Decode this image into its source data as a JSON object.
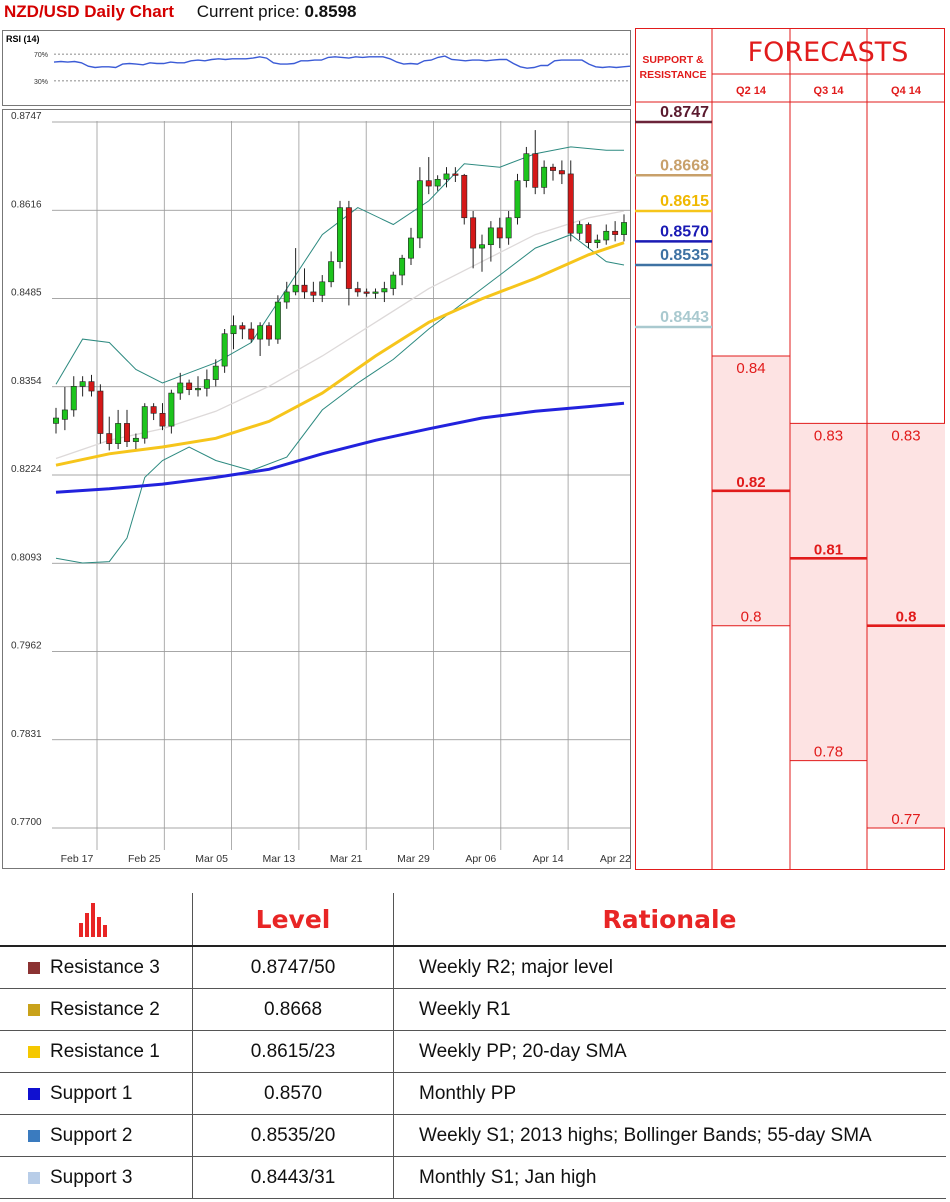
{
  "header": {
    "title": "NZD/USD Daily Chart",
    "price_label": "Current price:",
    "price_value": "0.8598"
  },
  "colors": {
    "up": "#1dc41d",
    "down": "#d41818",
    "sma20": "#ddd9d9",
    "sma55": "#f6c51b",
    "sma200": "#2222dd",
    "bollinger": "#2d8a80",
    "rsi": "#3b5bd6",
    "forecast_red": "#e11b1b",
    "forecast_fill": "#fde3e3"
  },
  "chart_data": [
    {
      "type": "line",
      "title": "RSI (14)",
      "yticks": [
        "70%",
        "30%"
      ],
      "ylim": [
        0,
        100
      ],
      "series": [
        {
          "values": [
            58,
            59,
            58,
            59,
            57,
            52,
            50,
            51,
            51,
            50,
            55,
            56,
            55,
            54,
            57,
            56,
            56,
            58,
            57,
            57,
            60,
            61,
            60,
            62,
            63,
            62,
            63,
            63,
            63,
            64,
            66,
            64,
            57,
            55,
            55,
            56,
            60,
            60,
            61,
            61,
            65,
            66,
            65,
            64,
            66,
            65,
            66,
            66,
            66,
            63,
            58,
            55,
            56,
            55,
            60,
            61,
            65,
            67,
            62,
            61,
            60,
            61,
            61,
            60,
            61,
            62,
            62,
            56,
            51,
            49,
            50,
            53,
            53,
            60,
            61,
            61,
            61,
            61,
            55,
            51,
            50,
            51,
            50,
            51,
            52
          ]
        }
      ]
    },
    {
      "type": "candlestick",
      "title": "NZD/USD Daily Chart",
      "yticks": [
        "0.8747",
        "0.8616",
        "0.8485",
        "0.8354",
        "0.8224",
        "0.8093",
        "0.7962",
        "0.7831",
        "0.7700"
      ],
      "ylim": [
        0.77,
        0.8747
      ],
      "xticks": [
        "Feb 17",
        "Feb 25",
        "Mar 05",
        "Mar 13",
        "Mar 21",
        "Mar 29",
        "Apr 06",
        "Apr 14",
        "Apr 22"
      ],
      "candles": [
        [
          0.83,
          0.8323,
          0.8308,
          0.8285
        ],
        [
          0.8306,
          0.8354,
          0.832,
          0.829
        ],
        [
          0.832,
          0.837,
          0.8355,
          0.831
        ],
        [
          0.8355,
          0.837,
          0.8362,
          0.834
        ],
        [
          0.8362,
          0.8372,
          0.8348,
          0.834
        ],
        [
          0.8348,
          0.8358,
          0.8285,
          0.827
        ],
        [
          0.8285,
          0.831,
          0.827,
          0.826
        ],
        [
          0.827,
          0.832,
          0.83,
          0.8262
        ],
        [
          0.83,
          0.832,
          0.8273,
          0.8265
        ],
        [
          0.8273,
          0.8285,
          0.8278,
          0.8262
        ],
        [
          0.8278,
          0.833,
          0.8325,
          0.827
        ],
        [
          0.8325,
          0.833,
          0.8315,
          0.8305
        ],
        [
          0.8315,
          0.833,
          0.8296,
          0.829
        ],
        [
          0.8296,
          0.835,
          0.8345,
          0.8285
        ],
        [
          0.8345,
          0.8375,
          0.836,
          0.8335
        ],
        [
          0.836,
          0.8365,
          0.835,
          0.8342
        ],
        [
          0.835,
          0.837,
          0.8352,
          0.834
        ],
        [
          0.8352,
          0.838,
          0.8365,
          0.834
        ],
        [
          0.8365,
          0.8395,
          0.8385,
          0.8355
        ],
        [
          0.8385,
          0.844,
          0.8433,
          0.8375
        ],
        [
          0.8433,
          0.846,
          0.8445,
          0.841
        ],
        [
          0.8445,
          0.845,
          0.844,
          0.8425
        ],
        [
          0.844,
          0.845,
          0.8425,
          0.842
        ],
        [
          0.8425,
          0.845,
          0.8445,
          0.84
        ],
        [
          0.8445,
          0.845,
          0.8425,
          0.8415
        ],
        [
          0.8425,
          0.849,
          0.848,
          0.8418
        ],
        [
          0.848,
          0.851,
          0.8495,
          0.847
        ],
        [
          0.8495,
          0.856,
          0.8505,
          0.849
        ],
        [
          0.8505,
          0.853,
          0.8495,
          0.8485
        ],
        [
          0.8495,
          0.851,
          0.849,
          0.848
        ],
        [
          0.849,
          0.852,
          0.851,
          0.848
        ],
        [
          0.851,
          0.8555,
          0.854,
          0.8502
        ],
        [
          0.854,
          0.863,
          0.862,
          0.853
        ],
        [
          0.862,
          0.863,
          0.85,
          0.8475
        ],
        [
          0.85,
          0.851,
          0.8495,
          0.8488
        ],
        [
          0.8495,
          0.85,
          0.8493,
          0.8488
        ],
        [
          0.8493,
          0.85,
          0.8495,
          0.8485
        ],
        [
          0.8495,
          0.851,
          0.85,
          0.848
        ],
        [
          0.85,
          0.8525,
          0.852,
          0.849
        ],
        [
          0.852,
          0.855,
          0.8545,
          0.8505
        ],
        [
          0.8545,
          0.859,
          0.8575,
          0.8535
        ],
        [
          0.8575,
          0.868,
          0.866,
          0.856
        ],
        [
          0.866,
          0.8695,
          0.8652,
          0.864
        ],
        [
          0.8652,
          0.8668,
          0.8662,
          0.8645
        ],
        [
          0.8662,
          0.868,
          0.867,
          0.865
        ],
        [
          0.867,
          0.868,
          0.8668,
          0.8658
        ],
        [
          0.8668,
          0.867,
          0.8605,
          0.8595
        ],
        [
          0.8605,
          0.8615,
          0.856,
          0.853
        ],
        [
          0.856,
          0.858,
          0.8565,
          0.8525
        ],
        [
          0.8565,
          0.86,
          0.859,
          0.854
        ],
        [
          0.859,
          0.8605,
          0.8575,
          0.856
        ],
        [
          0.8575,
          0.8615,
          0.8605,
          0.8565
        ],
        [
          0.8605,
          0.867,
          0.866,
          0.8595
        ],
        [
          0.866,
          0.871,
          0.87,
          0.865
        ],
        [
          0.87,
          0.8735,
          0.865,
          0.864
        ],
        [
          0.865,
          0.869,
          0.868,
          0.864
        ],
        [
          0.868,
          0.8685,
          0.8675,
          0.866
        ],
        [
          0.8675,
          0.869,
          0.867,
          0.8655
        ],
        [
          0.867,
          0.869,
          0.8582,
          0.857
        ],
        [
          0.8582,
          0.86,
          0.8595,
          0.8572
        ],
        [
          0.8595,
          0.8598,
          0.8568,
          0.856
        ],
        [
          0.8568,
          0.858,
          0.8572,
          0.856
        ],
        [
          0.8572,
          0.8595,
          0.8585,
          0.8565
        ],
        [
          0.8585,
          0.86,
          0.858,
          0.857
        ],
        [
          0.858,
          0.861,
          0.8598,
          0.857
        ]
      ],
      "series": [
        {
          "name": "sma20",
          "x": [
            0,
            6,
            12,
            18,
            24,
            30,
            36,
            42,
            48,
            54,
            60,
            64
          ],
          "values": [
            0.8248,
            0.8275,
            0.8292,
            0.8318,
            0.8355,
            0.84,
            0.845,
            0.85,
            0.854,
            0.858,
            0.8605,
            0.8615
          ]
        },
        {
          "name": "sma55",
          "x": [
            0,
            6,
            12,
            18,
            24,
            30,
            36,
            42,
            48,
            54,
            60,
            64
          ],
          "values": [
            0.8238,
            0.8255,
            0.8265,
            0.8278,
            0.8303,
            0.8345,
            0.84,
            0.845,
            0.8485,
            0.8515,
            0.855,
            0.8568
          ]
        },
        {
          "name": "sma200",
          "x": [
            0,
            6,
            12,
            18,
            24,
            30,
            36,
            42,
            48,
            54,
            60,
            64
          ],
          "values": [
            0.8198,
            0.8203,
            0.821,
            0.822,
            0.8232,
            0.8255,
            0.8275,
            0.8292,
            0.8308,
            0.8318,
            0.8325,
            0.833
          ]
        },
        {
          "name": "bb_upper",
          "x": [
            0,
            3,
            6,
            9,
            12,
            15,
            18,
            22,
            26,
            30,
            34,
            38,
            42,
            46,
            50,
            54,
            58,
            62,
            64
          ],
          "values": [
            0.8358,
            0.8425,
            0.842,
            0.838,
            0.836,
            0.8375,
            0.839,
            0.842,
            0.85,
            0.858,
            0.862,
            0.8595,
            0.863,
            0.8685,
            0.868,
            0.87,
            0.871,
            0.8705,
            0.8705
          ]
        },
        {
          "name": "bb_lower",
          "x": [
            0,
            3,
            6,
            8,
            10,
            12,
            15,
            18,
            22,
            26,
            30,
            34,
            38,
            42,
            46,
            50,
            54,
            58,
            62,
            64
          ],
          "values": [
            0.81,
            0.8093,
            0.8095,
            0.813,
            0.822,
            0.8245,
            0.8265,
            0.8245,
            0.823,
            0.825,
            0.832,
            0.836,
            0.8395,
            0.844,
            0.848,
            0.852,
            0.856,
            0.858,
            0.854,
            0.8535
          ]
        }
      ]
    }
  ],
  "forecast": {
    "title": "FORECASTS",
    "sr_title_line1": "SUPPORT &",
    "sr_title_line2": "RESISTANCE",
    "columns": [
      "Q2 14",
      "Q3 14",
      "Q4 14"
    ],
    "levels": [
      {
        "value": "0.8747",
        "y": 0.8747,
        "color": "#5a1a2e",
        "bar_color": "#6b2339"
      },
      {
        "value": "0.8668",
        "y": 0.8668,
        "color": "#c8a06a",
        "bar_color": "#c8a06a"
      },
      {
        "value": "0.8615",
        "y": 0.8615,
        "color": "#f0b800",
        "bar_color": "#f6c51b"
      },
      {
        "value": "0.8570",
        "y": 0.857,
        "color": "#1a1ab4",
        "bar_color": "#1a1ab4"
      },
      {
        "value": "0.8535",
        "y": 0.8535,
        "color": "#3e72a3",
        "bar_color": "#3e72a3"
      },
      {
        "value": "0.8443",
        "y": 0.8443,
        "color": "#a9c9cf",
        "bar_color": "#a9c9cf"
      }
    ],
    "ranges": [
      {
        "high_label": "0.84",
        "mid_label": "0.82",
        "low_label": "0.8",
        "high": 0.84,
        "mid": 0.82,
        "low": 0.8
      },
      {
        "high_label": "0.83",
        "mid_label": "0.81",
        "low_label": "0.78",
        "high": 0.83,
        "mid": 0.81,
        "low": 0.78
      },
      {
        "high_label": "0.83",
        "mid_label": "0.8",
        "low_label": "0.77",
        "high": 0.83,
        "mid": 0.8,
        "low": 0.77
      }
    ]
  },
  "table": {
    "headers": {
      "level": "Level",
      "rationale": "Rationale"
    },
    "rows": [
      {
        "label": "Resistance 3",
        "color": "#8b3232",
        "level": "0.8747/50",
        "rationale": "Weekly R2; major level"
      },
      {
        "label": "Resistance 2",
        "color": "#c9a21a",
        "level": "0.8668",
        "rationale": "Weekly R1"
      },
      {
        "label": "Resistance 1",
        "color": "#f5c800",
        "level": "0.8615/23",
        "rationale": "Weekly PP; 20-day SMA"
      },
      {
        "label": "Support 1",
        "color": "#1010d0",
        "level": "0.8570",
        "rationale": "Monthly PP"
      },
      {
        "label": "Support 2",
        "color": "#3a7bbf",
        "level": "0.8535/20",
        "rationale": "Weekly S1; 2013 highs; Bollinger Bands; 55-day SMA"
      },
      {
        "label": "Support 3",
        "color": "#b8cde8",
        "level": "0.8443/31",
        "rationale": "Monthly S1; Jan high"
      }
    ]
  }
}
